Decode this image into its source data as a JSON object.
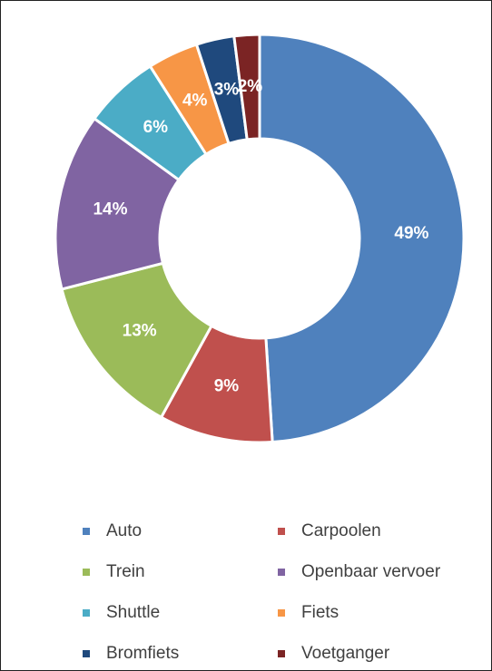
{
  "chart_data": {
    "type": "pie",
    "categories": [
      "Auto",
      "Carpoolen",
      "Trein",
      "Openbaar vervoer",
      "Shuttle",
      "Fiets",
      "Bromfiets",
      "Voetganger"
    ],
    "values": [
      49,
      9,
      13,
      14,
      6,
      4,
      3,
      2
    ],
    "value_labels": [
      "49%",
      "9%",
      "13%",
      "14%",
      "6%",
      "4%",
      "3%",
      "2%"
    ],
    "colors": [
      "#4f81bd",
      "#c0504d",
      "#9bbb59",
      "#8064a2",
      "#4bacc6",
      "#f79646",
      "#1f497d",
      "#7b2424"
    ],
    "donut": true,
    "legend": "bottom"
  }
}
